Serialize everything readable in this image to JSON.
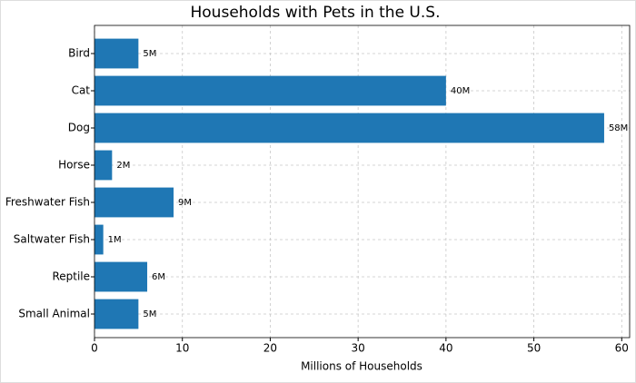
{
  "chart_data": {
    "type": "barh",
    "title": "Households with Pets in the U.S.",
    "xlabel": "Millions of Households",
    "categories": [
      "Bird",
      "Cat",
      "Dog",
      "Horse",
      "Freshwater Fish",
      "Saltwater Fish",
      "Reptile",
      "Small Animal"
    ],
    "values": [
      5,
      40,
      58,
      2,
      9,
      1,
      6,
      5
    ],
    "value_labels": [
      "5M",
      "40M",
      "58M",
      "2M",
      "9M",
      "1M",
      "6M",
      "5M"
    ],
    "color": "#1f77b4",
    "xlim": [
      0,
      60.9
    ],
    "xticks": [
      0,
      10,
      20,
      30,
      40,
      50,
      60
    ],
    "grid": true
  }
}
